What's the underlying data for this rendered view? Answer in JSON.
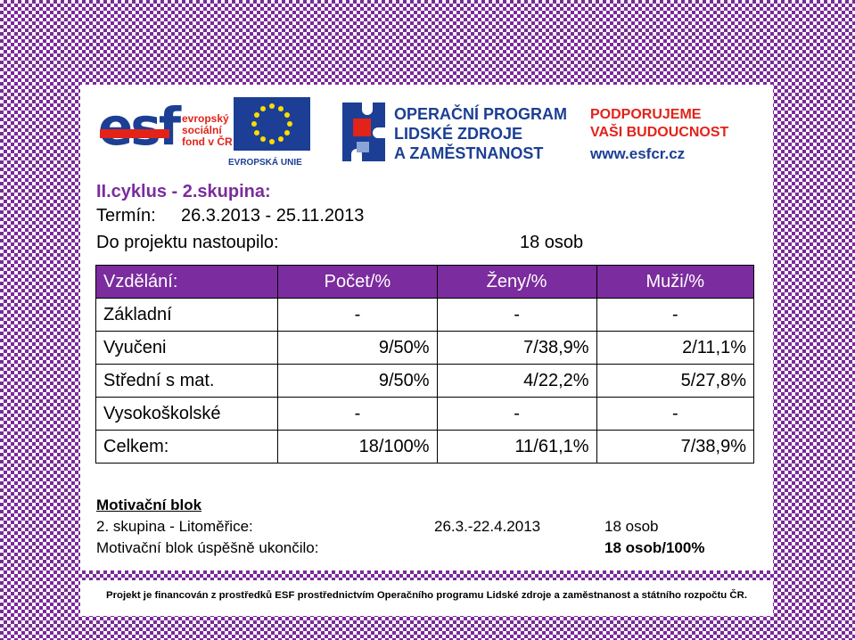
{
  "logos": {
    "esf_letters": "esf",
    "esf_text": [
      "evropský",
      "sociální",
      "fond v ČR"
    ],
    "eu_text": "EVROPSKÁ UNIE",
    "op_text": [
      "OPERAČNÍ PROGRAM",
      "LIDSKÉ ZDROJE",
      "A ZAMĚSTNANOST"
    ],
    "support_text": [
      "PODPORUJEME",
      "VAŠI BUDOUCNOST"
    ],
    "url": "www.esfcr.cz"
  },
  "header": {
    "title": "II.cyklus - 2.skupina:",
    "term_label": "Termín:",
    "term_value": "26.3.2013 - 25.11.2013",
    "joined_label": "Do projektu nastoupilo:",
    "joined_value": "18 osob"
  },
  "table": {
    "headers": [
      "Vzdělání:",
      "Počet/%",
      "Ženy/%",
      "Muži/%"
    ],
    "rows": [
      [
        "Základní",
        "-",
        "-",
        "-"
      ],
      [
        "Vyučeni",
        "9/50%",
        "7/38,9%",
        "2/11,1%"
      ],
      [
        "Střední s mat.",
        "9/50%",
        "4/22,2%",
        "5/27,8%"
      ],
      [
        "Vysokoškolské",
        "-",
        "-",
        "-"
      ],
      [
        "Celkem:",
        "18/100%",
        "11/61,1%",
        "7/38,9%"
      ]
    ]
  },
  "motivation": {
    "title": "Motivační blok",
    "group_label": "2. skupina - Litoměřice:",
    "group_dates": "26.3.-22.4.2013",
    "group_count": "18 osob",
    "completed_label": "Motivační blok úspěšně ukončilo:",
    "completed_value": "18 osob/100%"
  },
  "footer": {
    "text": "Projekt je financován z prostředků ESF prostřednictvím Operačního programu Lidské zdroje a zaměstnanost a státního rozpočtu ČR."
  },
  "colors": {
    "accent": "#7b2c9e",
    "esf_blue": "#1c3f95",
    "esf_red": "#e2231a"
  }
}
